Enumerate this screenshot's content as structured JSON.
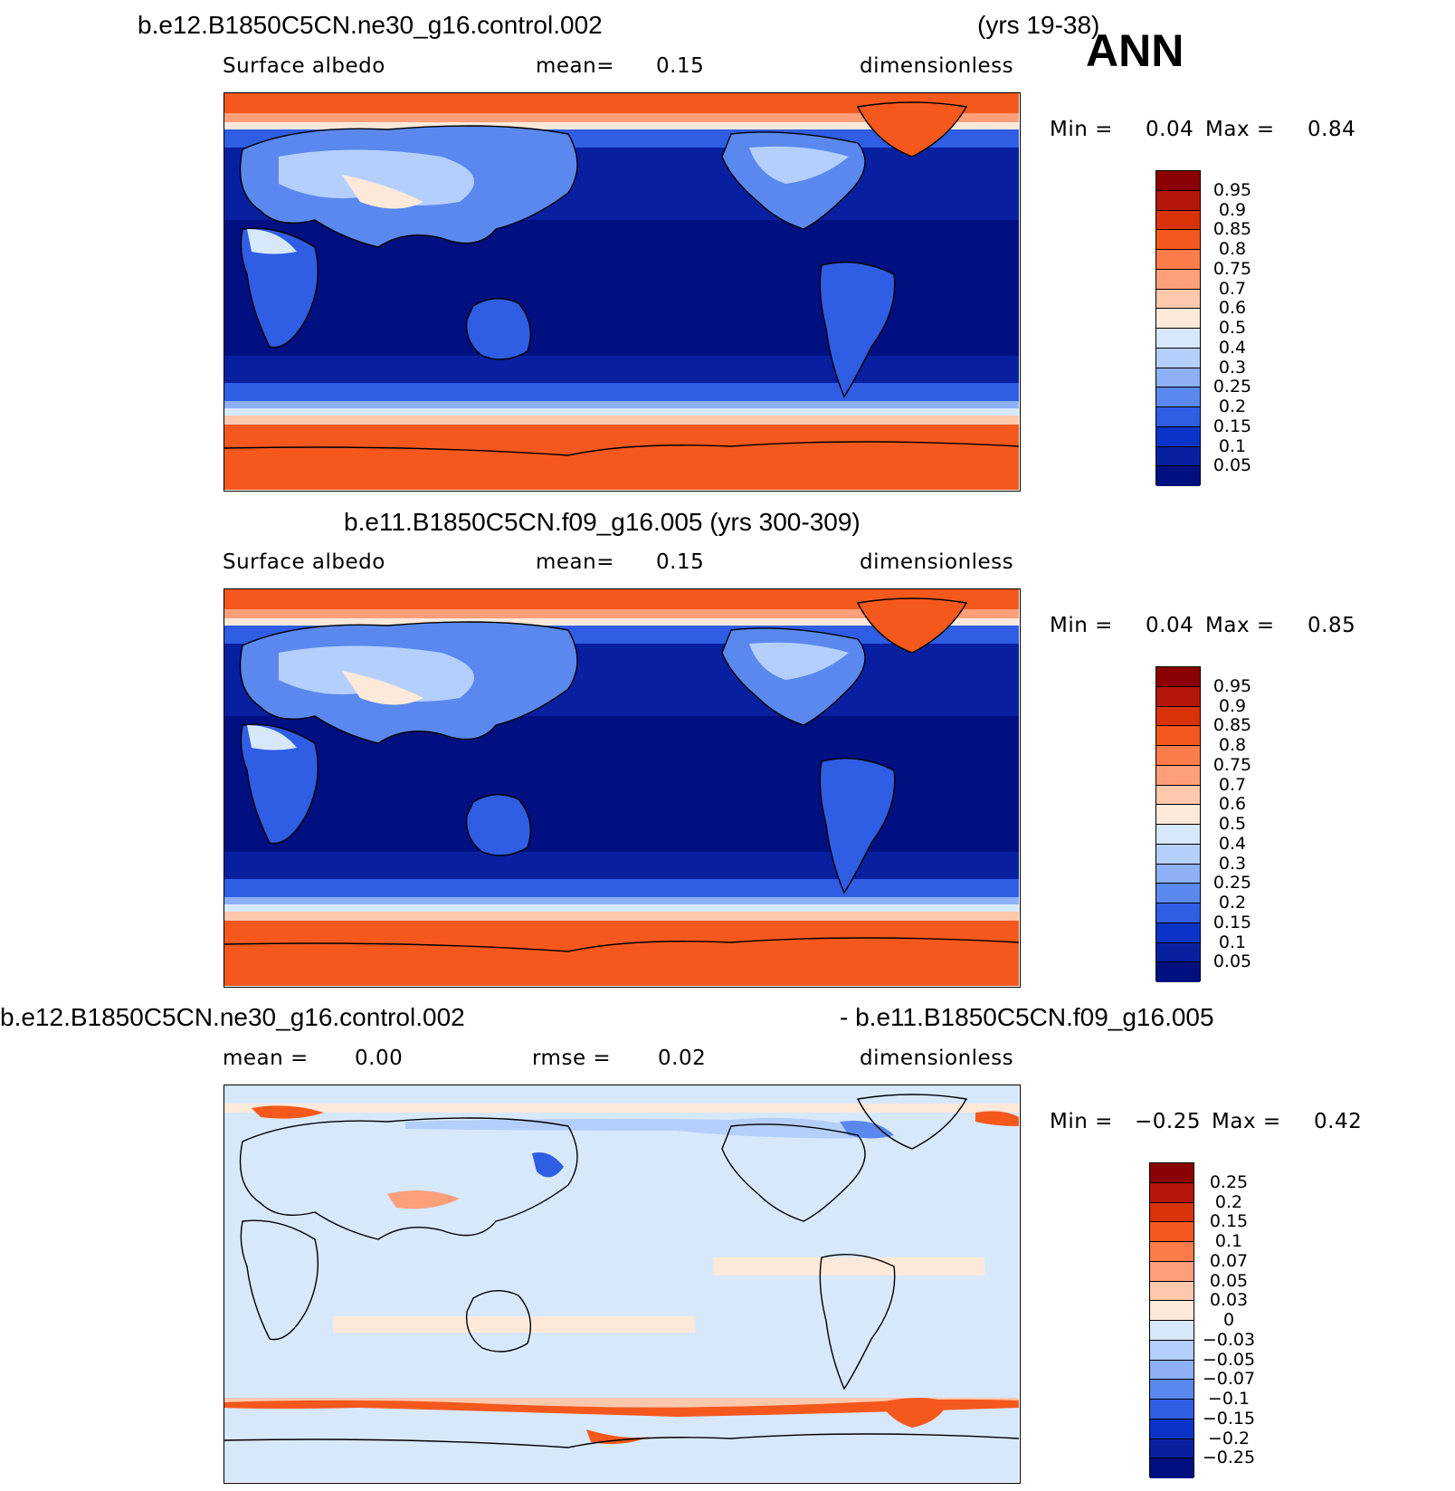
{
  "season": "ANN",
  "panels": [
    {
      "title_left": "b.e12.B1850C5CN.ne30_g16.control.002",
      "title_right": "(yrs 19-38)",
      "sub_left": "Surface albedo",
      "sub_mid_label": "mean=",
      "sub_mid_value": "0.15",
      "sub_right": "dimensionless",
      "min_label": "Min =",
      "min_value": "0.04",
      "max_label": "Max =",
      "max_value": "0.84",
      "colorbar_levels": [
        "0.95",
        "0.9",
        "0.85",
        "0.8",
        "0.75",
        "0.7",
        "0.6",
        "0.5",
        "0.4",
        "0.3",
        "0.25",
        "0.2",
        "0.15",
        "0.1",
        "0.05"
      ],
      "colorbar_colors": [
        "#8b0000",
        "#b5170a",
        "#d93209",
        "#f5581d",
        "#fb7c4a",
        "#fc9f7a",
        "#fdc8ac",
        "#fde9da",
        "#d7e8fb",
        "#b4cffb",
        "#8db0f7",
        "#5b88ee",
        "#2f5de3",
        "#0a34c8",
        "#0820a0",
        "#001080"
      ]
    },
    {
      "title_left": "b.e11.B1850C5CN.f09_g16.005 (yrs 300-309)",
      "sub_left": "Surface albedo",
      "sub_mid_label": "mean=",
      "sub_mid_value": "0.15",
      "sub_right": "dimensionless",
      "min_label": "Min =",
      "min_value": "0.04",
      "max_label": "Max =",
      "max_value": "0.85",
      "colorbar_levels": [
        "0.95",
        "0.9",
        "0.85",
        "0.8",
        "0.75",
        "0.7",
        "0.6",
        "0.5",
        "0.4",
        "0.3",
        "0.25",
        "0.2",
        "0.15",
        "0.1",
        "0.05"
      ],
      "colorbar_colors": [
        "#8b0000",
        "#b5170a",
        "#d93209",
        "#f5581d",
        "#fb7c4a",
        "#fc9f7a",
        "#fdc8ac",
        "#fde9da",
        "#d7e8fb",
        "#b4cffb",
        "#8db0f7",
        "#5b88ee",
        "#2f5de3",
        "#0a34c8",
        "#0820a0",
        "#001080"
      ]
    },
    {
      "title_left": "b.e12.B1850C5CN.ne30_g16.control.002",
      "title_right": "- b.e11.B1850C5CN.f09_g16.005",
      "sub_left": "mean =",
      "sub_left_value": "0.00",
      "sub_mid_label": "rmse =",
      "sub_mid_value": "0.02",
      "sub_right": "dimensionless",
      "min_label": "Min =",
      "min_value": "−0.25",
      "max_label": "Max =",
      "max_value": "0.42",
      "colorbar_levels": [
        "0.25",
        "0.2",
        "0.15",
        "0.1",
        "0.07",
        "0.05",
        "0.03",
        "0",
        "−0.03",
        "−0.05",
        "−0.07",
        "−0.1",
        "−0.15",
        "−0.2",
        "−0.25"
      ],
      "colorbar_colors": [
        "#8b0000",
        "#b5170a",
        "#d93209",
        "#f5581d",
        "#fb7c4a",
        "#fc9f7a",
        "#fdc8ac",
        "#fde9da",
        "#d7e8fb",
        "#b4cffb",
        "#8db0f7",
        "#5b88ee",
        "#2f5de3",
        "#0a34c8",
        "#0820a0",
        "#001080"
      ]
    }
  ]
}
